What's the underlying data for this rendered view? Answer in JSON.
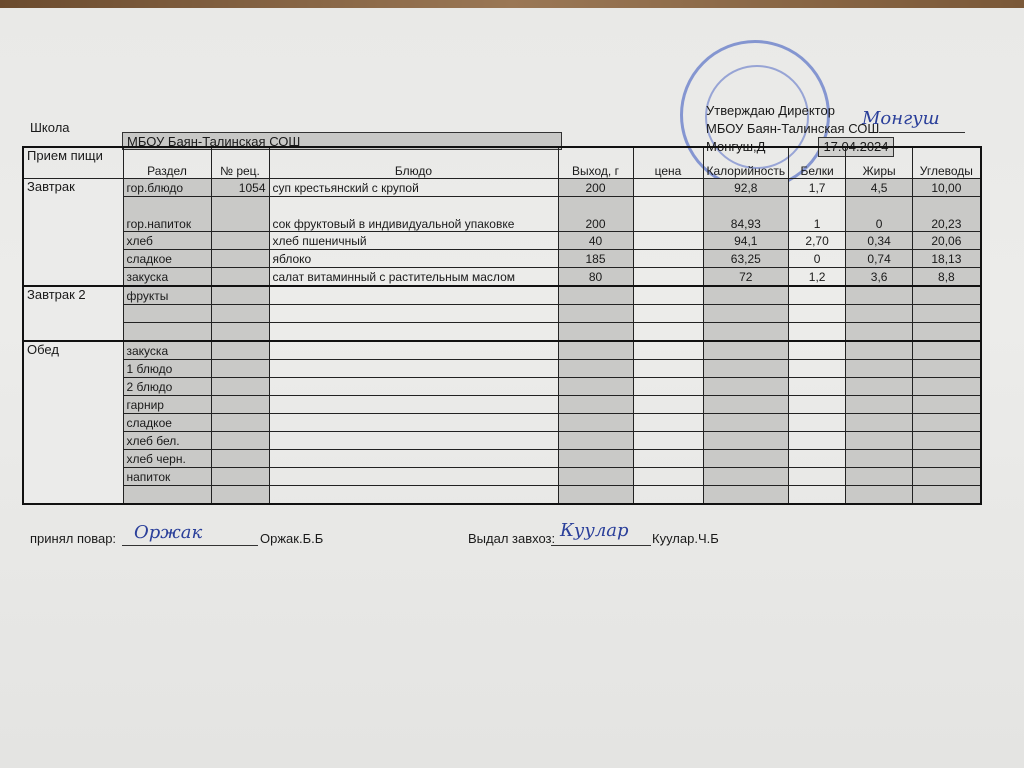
{
  "header": {
    "school_label": "Школа",
    "school_name": "МБОУ Баян-Талинская СОШ",
    "approve_line1": "Утверждаю Директор",
    "approve_line2": "МБОУ Баян-Талинская СОШ",
    "director_name": "Монгуш,Д",
    "date": "17.04.2024"
  },
  "columns": [
    "Прием пищи",
    "Раздел",
    "№ рец.",
    "Блюдо",
    "Выход, г",
    "цена",
    "Калорийность",
    "Белки",
    "Жиры",
    "Углеводы"
  ],
  "meals": [
    {
      "name": "Завтрак",
      "rows": [
        {
          "section": "гор.блюдо",
          "recipe": "1054",
          "dish": "суп крестьянский с крупой",
          "yield": "200",
          "price": "",
          "kcal": "92,8",
          "protein": "1,7",
          "fat": "4,5",
          "carbs": "10,00"
        },
        {
          "section": "гор.напиток",
          "recipe": "",
          "dish": " сок фруктовый в индивидуальной упаковке",
          "yield": "200",
          "price": "",
          "kcal": "84,93",
          "protein": "1",
          "fat": "0",
          "carbs": "20,23"
        },
        {
          "section": "хлеб",
          "recipe": "",
          "dish": "хлеб пшеничный",
          "yield": "40",
          "price": "",
          "kcal": "94,1",
          "protein": "2,70",
          "fat": "0,34",
          "carbs": "20,06"
        },
        {
          "section": "сладкое",
          "recipe": "",
          "dish": "яблоко",
          "yield": "185",
          "price": "",
          "kcal": "63,25",
          "protein": "0",
          "fat": "0,74",
          "carbs": "18,13"
        },
        {
          "section": "закуска",
          "recipe": "",
          "dish": "салат витаминный с растительным маслом",
          "yield": "80",
          "price": "",
          "kcal": "72",
          "protein": "1,2",
          "fat": "3,6",
          "carbs": "8,8"
        }
      ]
    },
    {
      "name": "Завтрак 2",
      "rows": [
        {
          "section": "фрукты"
        },
        {
          "section": ""
        },
        {
          "section": ""
        }
      ]
    },
    {
      "name": "Обед",
      "rows": [
        {
          "section": "закуска"
        },
        {
          "section": "1 блюдо"
        },
        {
          "section": "2 блюдо"
        },
        {
          "section": "гарнир"
        },
        {
          "section": "сладкое"
        },
        {
          "section": "хлеб бел."
        },
        {
          "section": "хлеб черн."
        },
        {
          "section": "напиток"
        },
        {
          "section": ""
        }
      ]
    }
  ],
  "footer": {
    "cook_label": "принял повар:",
    "cook_name": "Оржак.Б.Б",
    "storekeeper_label": "Выдал завхоз:",
    "storekeeper_name": "Куулар.Ч.Б"
  },
  "stamp": {
    "text": "МБОУ БТСОШ"
  },
  "signatures": {
    "director": "Монгуш",
    "cook": "Оржак",
    "storekeeper": "Куулар"
  }
}
